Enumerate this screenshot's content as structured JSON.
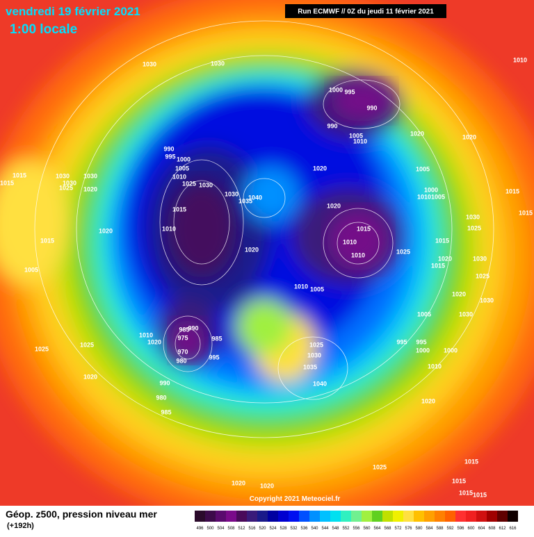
{
  "header": {
    "title": "vendredi 19 février 2021",
    "subtitle": "1:00 locale",
    "run": "Run ECMWF // 0Z du jeudi 11 février 2021"
  },
  "footer": {
    "copyright": "Copyright 2021 Meteociel.fr",
    "legend_title": "Géop. z500, pression niveau mer",
    "legend_subtitle": "(+192h)"
  },
  "legend": {
    "ticks": [
      496,
      500,
      504,
      508,
      512,
      516,
      520,
      524,
      528,
      532,
      536,
      540,
      544,
      548,
      552,
      556,
      560,
      564,
      568,
      572,
      576,
      580,
      584,
      588,
      592,
      596,
      600,
      604,
      608,
      612,
      616
    ],
    "colors": [
      "#2b0a2b",
      "#3d0a4a",
      "#5a0a6e",
      "#7a0a8a",
      "#4a0a5a",
      "#3a1a7a",
      "#1a1a8a",
      "#0000a0",
      "#0000d0",
      "#0010f0",
      "#0050ff",
      "#0090ff",
      "#00c0ff",
      "#00e0f0",
      "#30f0c0",
      "#70f090",
      "#a0f040",
      "#60d020",
      "#c0e000",
      "#f0f000",
      "#ffe040",
      "#ffc000",
      "#ffa000",
      "#ff8000",
      "#ff6000",
      "#ff3030",
      "#f02020",
      "#d01010",
      "#a00000",
      "#600000",
      "#100000"
    ]
  },
  "isobar_labels": [
    1030,
    1030,
    1010,
    1000,
    995,
    990,
    990,
    1005,
    1010,
    1020,
    1020,
    990,
    995,
    1000,
    1005,
    1010,
    1025,
    1030,
    1020,
    1005,
    1030,
    1030,
    1030,
    1025,
    1020,
    1015,
    1015,
    1030,
    1040,
    1035,
    1000,
    1010,
    1005,
    1015,
    1020,
    1015,
    1010,
    1015,
    1010,
    1010,
    1030,
    1025,
    1015,
    1020,
    1015,
    1020,
    1025,
    1015,
    1020,
    1015,
    1030,
    1005,
    1010,
    1005,
    1025,
    1020,
    1030,
    1005,
    1030,
    985,
    990,
    975,
    1010,
    1020,
    985,
    995,
    995,
    970,
    1000,
    1000,
    1025,
    1030,
    980,
    995,
    1035,
    1010,
    1025,
    1025,
    1020,
    990,
    1040,
    980,
    1020,
    985,
    1025,
    1015,
    1015,
    1020,
    1020,
    1015,
    1015
  ]
}
